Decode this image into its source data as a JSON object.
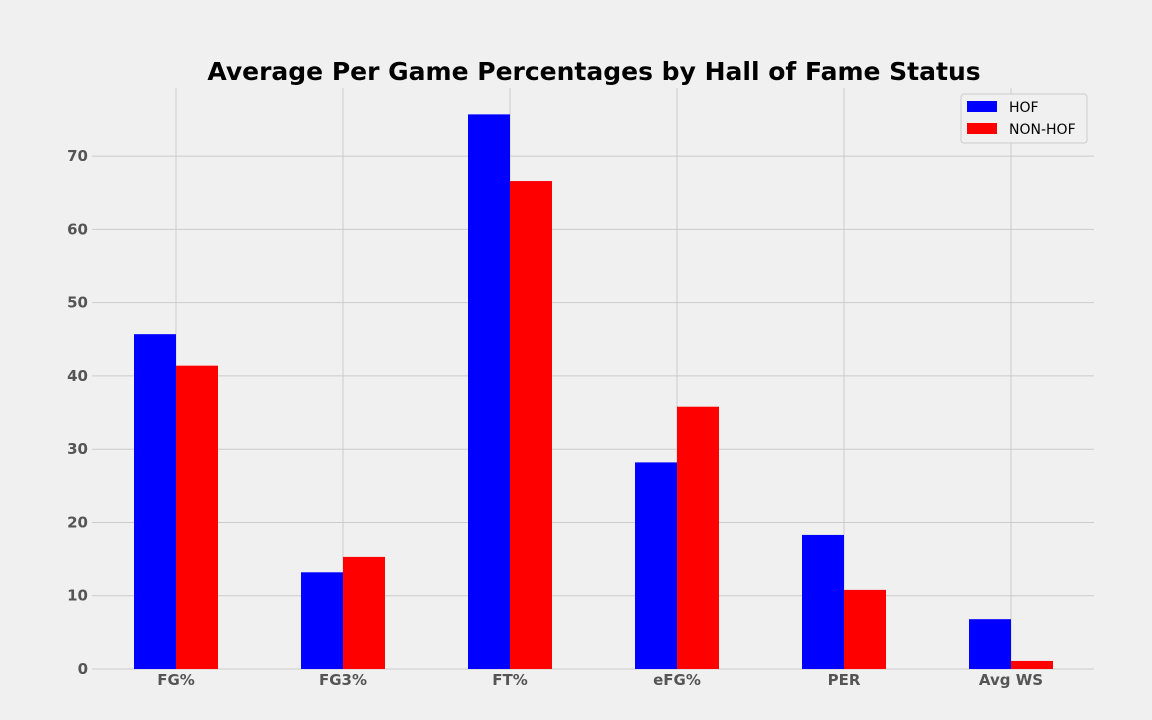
{
  "chart_data": {
    "type": "bar",
    "title": "Average Per Game Percentages by Hall of Fame Status",
    "xlabel": "",
    "ylabel": "",
    "categories": [
      "FG%",
      "FG3%",
      "FT%",
      "eFG%",
      "PER",
      "Avg WS"
    ],
    "series": [
      {
        "name": "HOF",
        "color": "#0000ff",
        "values": [
          45.7,
          13.2,
          75.7,
          28.2,
          18.3,
          6.8
        ]
      },
      {
        "name": "NON-HOF",
        "color": "#ff0000",
        "values": [
          41.4,
          15.3,
          66.6,
          35.8,
          10.8,
          1.1
        ]
      }
    ],
    "ylim": [
      0,
      79.3
    ],
    "yticks": [
      0,
      10,
      20,
      30,
      40,
      50,
      60,
      70
    ],
    "grid": true,
    "legend_position": "top-right"
  }
}
